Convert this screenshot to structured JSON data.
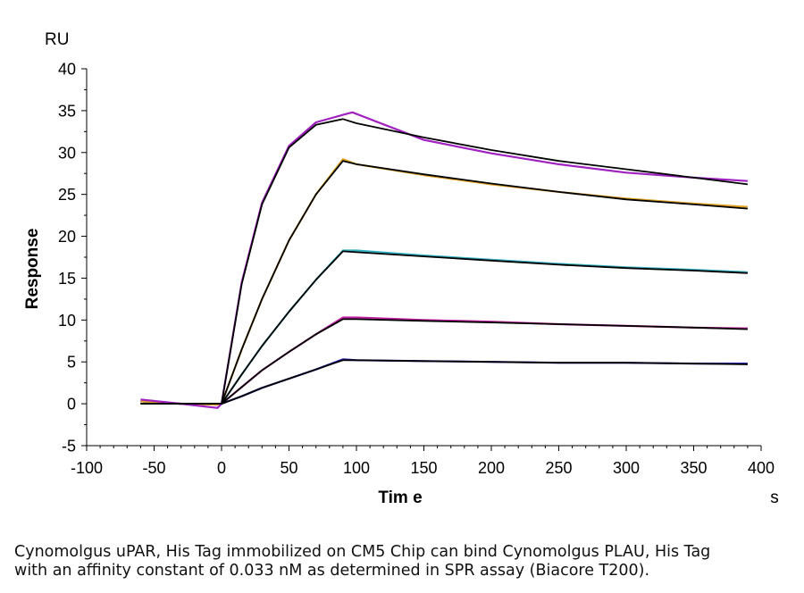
{
  "chart_data": {
    "type": "line",
    "ylabel": "Response",
    "yunit": "RU",
    "xlabel": "Tim e",
    "xunit": "s",
    "xlim": [
      -100,
      400
    ],
    "ylim": [
      -5,
      40
    ],
    "x_ticks": [
      -100,
      -50,
      0,
      50,
      100,
      150,
      200,
      250,
      300,
      350,
      400
    ],
    "y_ticks": [
      -5,
      0,
      5,
      10,
      15,
      20,
      25,
      30,
      35,
      40
    ],
    "x_tick_labels": [
      "-100",
      "-50",
      "0",
      "50",
      "100",
      "150",
      "200",
      "250",
      "300",
      "350",
      "400"
    ],
    "y_tick_labels": [
      "-5",
      "0",
      "5",
      "10",
      "15",
      "20",
      "25",
      "30",
      "35",
      "40"
    ],
    "grid": false,
    "legend": "none",
    "series": [
      {
        "color": "#1f1fb0",
        "values": [
          [
            -60,
            0.3
          ],
          [
            -30,
            0.0
          ],
          [
            -3,
            -0.1
          ],
          [
            0,
            0.0
          ],
          [
            15,
            0.9
          ],
          [
            30,
            1.9
          ],
          [
            50,
            3.0
          ],
          [
            70,
            4.1
          ],
          [
            90,
            5.3
          ],
          [
            100,
            5.2
          ],
          [
            150,
            5.1
          ],
          [
            200,
            5.0
          ],
          [
            250,
            4.9
          ],
          [
            300,
            4.9
          ],
          [
            350,
            4.8
          ],
          [
            390,
            4.8
          ]
        ]
      },
      {
        "color": "#c020a0",
        "values": [
          [
            -60,
            0.3
          ],
          [
            -30,
            0.0
          ],
          [
            -3,
            -0.1
          ],
          [
            0,
            0.0
          ],
          [
            15,
            2.0
          ],
          [
            30,
            4.0
          ],
          [
            50,
            6.2
          ],
          [
            70,
            8.3
          ],
          [
            90,
            10.3
          ],
          [
            100,
            10.3
          ],
          [
            150,
            10.0
          ],
          [
            200,
            9.8
          ],
          [
            250,
            9.5
          ],
          [
            300,
            9.3
          ],
          [
            350,
            9.1
          ],
          [
            390,
            9.0
          ]
        ]
      },
      {
        "color": "#30b0c0",
        "values": [
          [
            -60,
            0.3
          ],
          [
            -30,
            0.0
          ],
          [
            -3,
            -0.1
          ],
          [
            0,
            0.0
          ],
          [
            15,
            3.5
          ],
          [
            30,
            6.9
          ],
          [
            50,
            11.0
          ],
          [
            70,
            14.8
          ],
          [
            90,
            18.3
          ],
          [
            100,
            18.3
          ],
          [
            150,
            17.7
          ],
          [
            200,
            17.2
          ],
          [
            250,
            16.7
          ],
          [
            300,
            16.3
          ],
          [
            350,
            16.0
          ],
          [
            390,
            15.7
          ]
        ]
      },
      {
        "color": "#e0a020",
        "values": [
          [
            -60,
            0.3
          ],
          [
            -30,
            0.0
          ],
          [
            -3,
            -0.1
          ],
          [
            0,
            0.0
          ],
          [
            15,
            6.5
          ],
          [
            30,
            12.5
          ],
          [
            50,
            19.5
          ],
          [
            70,
            25.0
          ],
          [
            90,
            29.2
          ],
          [
            100,
            28.6
          ],
          [
            150,
            27.3
          ],
          [
            200,
            26.2
          ],
          [
            250,
            25.3
          ],
          [
            300,
            24.5
          ],
          [
            350,
            23.9
          ],
          [
            390,
            23.5
          ]
        ]
      },
      {
        "color": "#a020c0",
        "values": [
          [
            -60,
            0.5
          ],
          [
            -30,
            0.0
          ],
          [
            -3,
            -0.5
          ],
          [
            0,
            0.0
          ],
          [
            15,
            14.5
          ],
          [
            30,
            24.0
          ],
          [
            50,
            30.8
          ],
          [
            70,
            33.6
          ],
          [
            90,
            34.5
          ],
          [
            97,
            34.8
          ],
          [
            150,
            31.5
          ],
          [
            200,
            29.9
          ],
          [
            250,
            28.6
          ],
          [
            300,
            27.6
          ],
          [
            350,
            27.0
          ],
          [
            390,
            26.6
          ]
        ]
      }
    ],
    "fits": [
      {
        "color": "#000000",
        "values": [
          [
            -60,
            0.0
          ],
          [
            -2,
            0.0
          ],
          [
            0,
            0.0
          ],
          [
            15,
            0.9
          ],
          [
            30,
            1.9
          ],
          [
            50,
            3.0
          ],
          [
            70,
            4.1
          ],
          [
            90,
            5.2
          ],
          [
            100,
            5.2
          ],
          [
            150,
            5.1
          ],
          [
            200,
            5.0
          ],
          [
            250,
            4.9
          ],
          [
            300,
            4.9
          ],
          [
            350,
            4.8
          ],
          [
            390,
            4.7
          ]
        ]
      },
      {
        "color": "#000000",
        "values": [
          [
            -60,
            0.0
          ],
          [
            -2,
            0.0
          ],
          [
            0,
            0.0
          ],
          [
            15,
            2.0
          ],
          [
            30,
            4.0
          ],
          [
            50,
            6.2
          ],
          [
            70,
            8.3
          ],
          [
            90,
            10.1
          ],
          [
            100,
            10.1
          ],
          [
            150,
            9.9
          ],
          [
            200,
            9.7
          ],
          [
            250,
            9.5
          ],
          [
            300,
            9.3
          ],
          [
            350,
            9.1
          ],
          [
            390,
            8.9
          ]
        ]
      },
      {
        "color": "#000000",
        "values": [
          [
            -60,
            0.0
          ],
          [
            -2,
            0.0
          ],
          [
            0,
            0.0
          ],
          [
            15,
            3.5
          ],
          [
            30,
            6.9
          ],
          [
            50,
            11.0
          ],
          [
            70,
            14.8
          ],
          [
            90,
            18.2
          ],
          [
            100,
            18.1
          ],
          [
            150,
            17.6
          ],
          [
            200,
            17.1
          ],
          [
            250,
            16.6
          ],
          [
            300,
            16.2
          ],
          [
            350,
            15.9
          ],
          [
            390,
            15.6
          ]
        ]
      },
      {
        "color": "#000000",
        "values": [
          [
            -60,
            0.0
          ],
          [
            -2,
            0.0
          ],
          [
            0,
            0.0
          ],
          [
            15,
            6.5
          ],
          [
            30,
            12.5
          ],
          [
            50,
            19.5
          ],
          [
            70,
            25.0
          ],
          [
            90,
            29.0
          ],
          [
            100,
            28.6
          ],
          [
            150,
            27.4
          ],
          [
            200,
            26.3
          ],
          [
            250,
            25.3
          ],
          [
            300,
            24.4
          ],
          [
            350,
            23.8
          ],
          [
            390,
            23.3
          ]
        ]
      },
      {
        "color": "#000000",
        "values": [
          [
            -60,
            0.0
          ],
          [
            -2,
            0.0
          ],
          [
            0,
            0.0
          ],
          [
            15,
            14.3
          ],
          [
            30,
            23.8
          ],
          [
            50,
            30.6
          ],
          [
            70,
            33.3
          ],
          [
            90,
            34.0
          ],
          [
            100,
            33.5
          ],
          [
            150,
            31.8
          ],
          [
            200,
            30.3
          ],
          [
            250,
            29.0
          ],
          [
            300,
            28.0
          ],
          [
            350,
            27.0
          ],
          [
            390,
            26.2
          ]
        ]
      }
    ]
  },
  "caption": {
    "line1": "Cynomolgus uPAR, His Tag immobilized on CM5 Chip can bind Cynomolgus PLAU, His Tag",
    "line2": "with an affinity constant of 0.033 nM as determined in SPR assay (Biacore T200)."
  }
}
